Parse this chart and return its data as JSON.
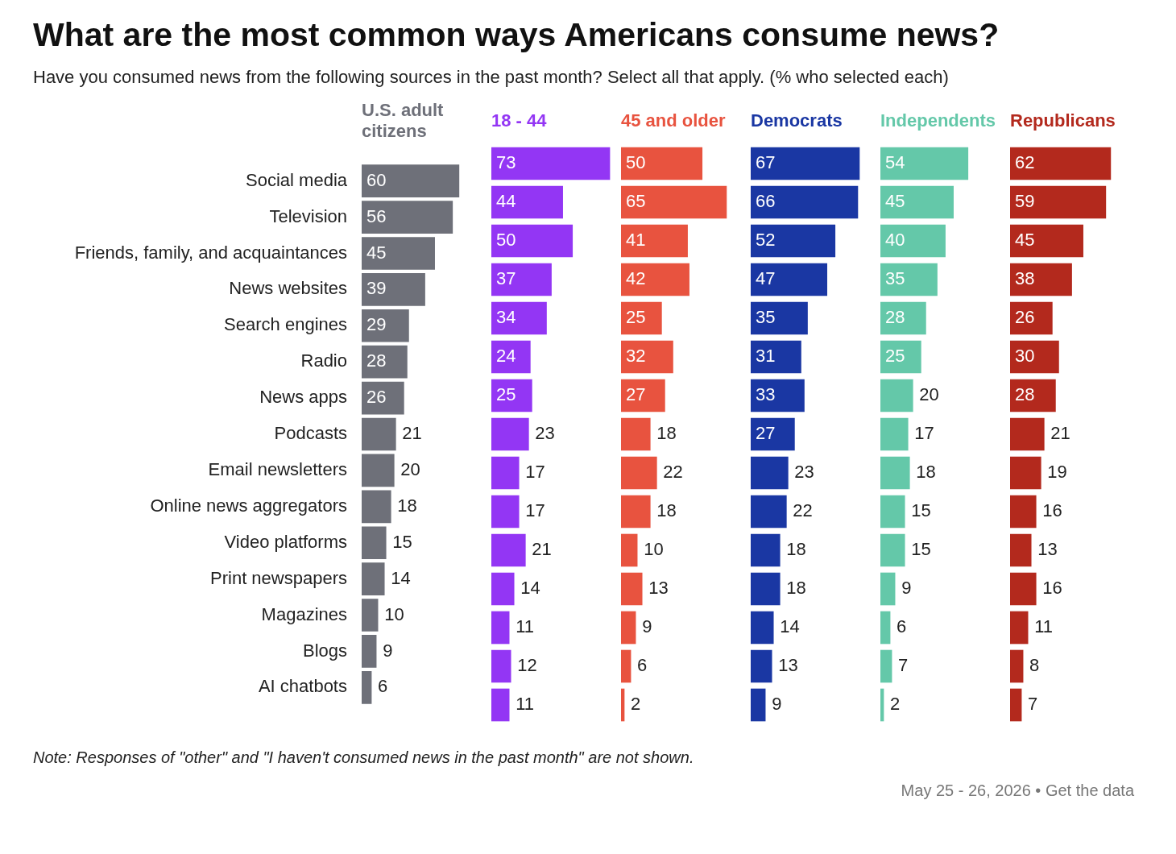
{
  "chart_data": [
    {
      "type": "bar",
      "orientation": "horizontal",
      "title": "What are the most common ways Americans consume news?",
      "subtitle": "Have you consumed news from the following sources in the past month? Select all that apply. (% who selected each)",
      "categories": [
        "Social media",
        "Television",
        "Friends, family, and acquaintances",
        "News websites",
        "Search engines",
        "Radio",
        "News apps",
        "Podcasts",
        "Email newsletters",
        "Online news aggregators",
        "Video platforms",
        "Print newspapers",
        "Magazines",
        "Blogs",
        "AI chatbots"
      ],
      "data_labels": true,
      "tick_labels": "y",
      "series": [
        {
          "name": "U.S. adult citizens",
          "color": "#6e7079",
          "values": [
            60,
            56,
            45,
            39,
            29,
            28,
            26,
            21,
            20,
            18,
            15,
            14,
            10,
            9,
            6
          ]
        }
      ],
      "annotations": [
        "Note: Responses of \"other\" and \"I haven't consumed news in the past month\" are not shown.",
        "May 25 - 26, 2026 • Get the data"
      ]
    },
    {
      "type": "bar",
      "orientation": "horizontal",
      "categories": [
        null,
        null,
        null,
        null,
        null,
        null,
        null,
        null,
        null,
        null,
        null,
        null,
        null,
        null,
        null
      ],
      "data_labels": true,
      "tick_labels": false,
      "series": [
        {
          "name": "18 - 44",
          "color": "#9336f4",
          "values": [
            73,
            44,
            50,
            37,
            34,
            24,
            25,
            23,
            17,
            17,
            21,
            14,
            11,
            12,
            11
          ]
        }
      ]
    },
    {
      "type": "bar",
      "orientation": "horizontal",
      "categories": [
        null,
        null,
        null,
        null,
        null,
        null,
        null,
        null,
        null,
        null,
        null,
        null,
        null,
        null,
        null
      ],
      "data_labels": true,
      "tick_labels": false,
      "series": [
        {
          "name": "45 and older",
          "color": "#e8533f",
          "values": [
            50,
            65,
            41,
            42,
            25,
            32,
            27,
            18,
            22,
            18,
            10,
            13,
            9,
            6,
            2
          ]
        }
      ]
    },
    {
      "type": "bar",
      "orientation": "horizontal",
      "categories": [
        null,
        null,
        null,
        null,
        null,
        null,
        null,
        null,
        null,
        null,
        null,
        null,
        null,
        null,
        null
      ],
      "data_labels": true,
      "tick_labels": false,
      "series": [
        {
          "name": "Democrats",
          "color": "#1a37a3",
          "values": [
            67,
            66,
            52,
            47,
            35,
            31,
            33,
            27,
            23,
            22,
            18,
            18,
            14,
            13,
            9
          ]
        }
      ]
    },
    {
      "type": "bar",
      "orientation": "horizontal",
      "categories": [
        null,
        null,
        null,
        null,
        null,
        null,
        null,
        null,
        null,
        null,
        null,
        null,
        null,
        null,
        null
      ],
      "data_labels": true,
      "tick_labels": false,
      "series": [
        {
          "name": "Independents",
          "color": "#64c8a9",
          "values": [
            54,
            45,
            40,
            35,
            28,
            25,
            20,
            17,
            18,
            15,
            15,
            9,
            6,
            7,
            2
          ]
        }
      ]
    },
    {
      "type": "bar",
      "orientation": "horizontal",
      "categories": [
        null,
        null,
        null,
        null,
        null,
        null,
        null,
        null,
        null,
        null,
        null,
        null,
        null,
        null,
        null
      ],
      "data_labels": true,
      "tick_labels": false,
      "series": [
        {
          "name": "Republicans",
          "color": "#b3291d",
          "values": [
            62,
            59,
            45,
            38,
            26,
            30,
            28,
            21,
            19,
            16,
            13,
            16,
            11,
            8,
            7
          ]
        }
      ]
    }
  ]
}
